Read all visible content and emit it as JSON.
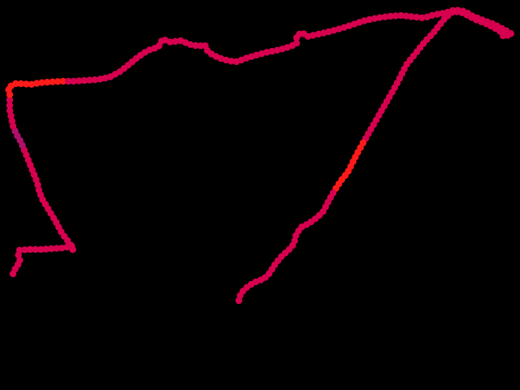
{
  "map": {
    "background_color": "#000000",
    "track": {
      "color": "#d6004f",
      "highlight_color": "#ff1a1a",
      "alt_color": "#b0106a",
      "highlight_segments": [
        {
          "from_index": 48,
          "to_index": 60
        },
        {
          "from_index": 196,
          "to_index": 206
        }
      ],
      "alt_segments": [
        {
          "from_index": 38,
          "to_index": 41
        }
      ],
      "point_count": 236
    }
  }
}
